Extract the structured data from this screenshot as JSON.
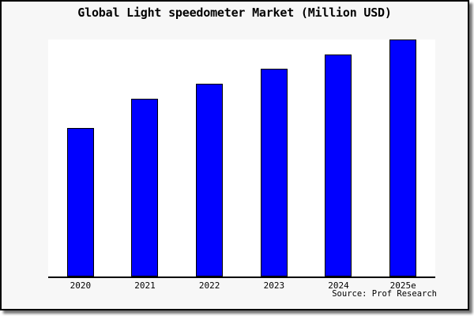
{
  "title": "Global Light speedometer Market (Million USD)",
  "source_label": "Source: Prof Research",
  "colors": {
    "bar_fill": "#0000ff",
    "bar_border": "#000000",
    "page_background": "#f7f7f7",
    "plot_background": "#ffffff",
    "axis": "#000000",
    "text": "#000000"
  },
  "chart_data": {
    "type": "bar",
    "title": "Global Light speedometer Market (Million USD)",
    "categories": [
      "2020",
      "2021",
      "2022",
      "2023",
      "2024",
      "2025e"
    ],
    "values": [
      62.7,
      75.0,
      81.5,
      87.7,
      93.7,
      100
    ],
    "xlabel": "",
    "ylabel": "",
    "ylim": [
      0,
      100
    ],
    "value_note": "y-axis is unlabeled; values are relative bar heights as percent of the tallest bar (2025e = 100)",
    "grid": false,
    "legend": false,
    "annotations": [
      "Source: Prof Research"
    ]
  }
}
